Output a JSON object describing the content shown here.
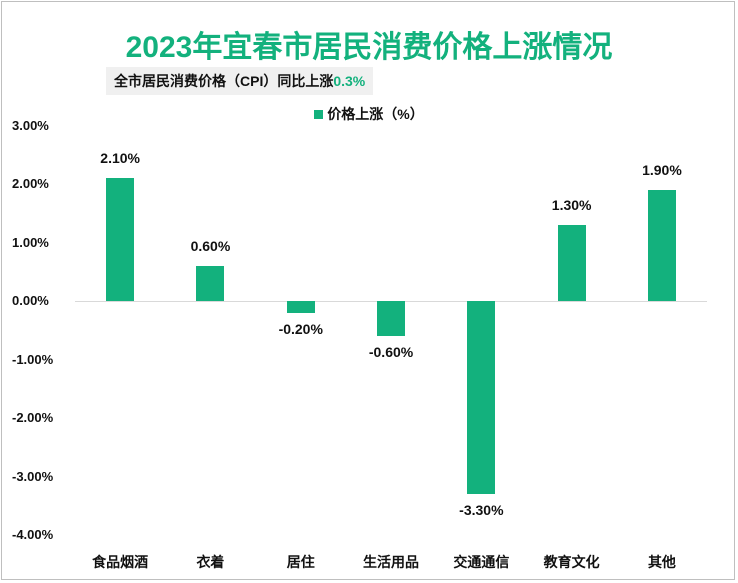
{
  "header": {
    "title": "2023年宜春市居民消费价格上涨情况",
    "subtitle_prefix": "全市居民消费价格（CPI）同比上涨",
    "subtitle_value": "0.3%"
  },
  "legend": {
    "label": "价格上涨（%）",
    "color": "#13b17d"
  },
  "colors": {
    "accent": "#13b17d",
    "text": "#111111",
    "gridline": "#d9d9d9"
  },
  "y_ticks": [
    "3.00%",
    "2.00%",
    "1.00%",
    "0.00%",
    "-1.00%",
    "-2.00%",
    "-3.00%",
    "-4.00%"
  ],
  "chart_data": {
    "type": "bar",
    "title": "2023年宜春市居民消费价格上涨情况",
    "subtitle": "全市居民消费价格（CPI）同比上涨0.3%",
    "categories": [
      "食品烟酒",
      "衣着",
      "居住",
      "生活用品",
      "交通通信",
      "教育文化",
      "其他"
    ],
    "series": [
      {
        "name": "价格上涨（%）",
        "values": [
          2.1,
          0.6,
          -0.2,
          -0.6,
          -3.3,
          1.3,
          1.9
        ]
      }
    ],
    "data_labels": [
      "2.10%",
      "0.60%",
      "-0.20%",
      "-0.60%",
      "-3.30%",
      "1.30%",
      "1.90%"
    ],
    "xlabel": "",
    "ylabel": "",
    "ylim": [
      -4.0,
      3.0
    ],
    "y_tick_format": "0.00%",
    "grid": false,
    "legend_position": "top"
  }
}
